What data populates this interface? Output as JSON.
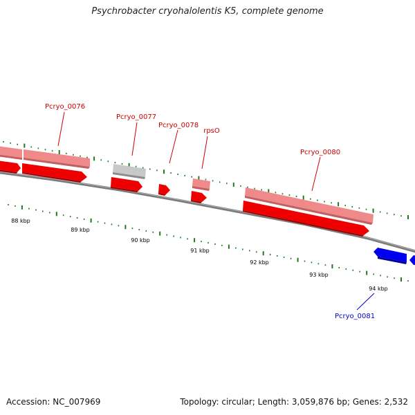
{
  "title": "Psychrobacter cryohalolentis K5, complete genome",
  "footer": {
    "accession": "Accession: NC_007969",
    "summary": "Topology: circular; Length: 3,059,876 bp; Genes: 2,532"
  },
  "colors": {
    "forward_gene": "#ee0000",
    "forward_gene_light": "#f08080",
    "other_feature": "#c0c0c0",
    "reverse_gene": "#0000ee",
    "tick": "#1e7a1e",
    "backbone": "#7a7a7a",
    "label_forward": "#cc0000",
    "label_reverse": "#0000cc"
  },
  "scale_labels": [
    "88 kbp",
    "89 kbp",
    "90 kbp",
    "91 kbp",
    "92 kbp",
    "93 kbp",
    "94 kbp"
  ],
  "gene_labels": {
    "g76": "Pcryo_0076",
    "g77": "Pcryo_0077",
    "g78": "Pcryo_0078",
    "g79": "rpsO",
    "g80": "Pcryo_0080",
    "g81": "Pcryo_0081"
  }
}
